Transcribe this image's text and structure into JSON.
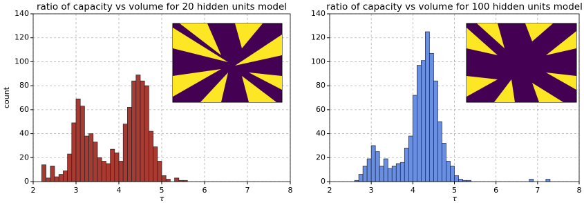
{
  "chart_data": [
    {
      "type": "histogram",
      "title": "ratio of capacity vs volume for 20 hidden units model",
      "xlabel": "τ",
      "ylabel": "count",
      "bins": [
        2.2,
        2.3,
        2.4,
        2.5,
        2.6,
        2.7,
        2.8,
        2.9,
        3.0,
        3.1,
        3.2,
        3.3,
        3.4,
        3.5,
        3.6,
        3.7,
        3.8,
        3.9,
        4.0,
        4.1,
        4.2,
        4.3,
        4.4,
        4.5,
        4.6,
        4.7,
        4.8,
        4.9,
        5.0,
        5.1,
        5.2,
        5.3,
        5.4,
        5.5,
        5.6
      ],
      "values": [
        14,
        3,
        13,
        4,
        6,
        9,
        23,
        49,
        69,
        63,
        38,
        40,
        33,
        20,
        17,
        15,
        27,
        24,
        17,
        48,
        62,
        84,
        89,
        84,
        80,
        42,
        29,
        17,
        5,
        2,
        0,
        3,
        1,
        1
      ],
      "color": "#a83a32",
      "xlim": [
        2,
        8
      ],
      "ylim": [
        0,
        140
      ],
      "xticks": [
        2,
        3,
        4,
        5,
        6,
        7,
        8
      ],
      "yticks": [
        0,
        20,
        40,
        60,
        80,
        100,
        120,
        140
      ],
      "grid": true
    },
    {
      "type": "histogram",
      "title": "ratio of capacity vs volume for 100 hidden units model",
      "xlabel": "τ",
      "bins": [
        2.6,
        2.7,
        2.8,
        2.9,
        3.0,
        3.1,
        3.2,
        3.3,
        3.4,
        3.5,
        3.6,
        3.7,
        3.8,
        3.9,
        4.0,
        4.1,
        4.2,
        4.3,
        4.4,
        4.5,
        4.6,
        4.7,
        4.8,
        4.9,
        5.0,
        5.1,
        5.2,
        5.3,
        5.4,
        5.5,
        5.6,
        5.7,
        5.8,
        5.9,
        6.0,
        6.1,
        6.2,
        6.3,
        6.4,
        6.5,
        6.6,
        6.7,
        6.8,
        6.9,
        7.0,
        7.1,
        7.2,
        7.3
      ],
      "values": [
        1,
        6,
        13,
        19,
        30,
        25,
        13,
        19,
        11,
        13,
        15,
        16,
        28,
        38,
        72,
        97,
        101,
        125,
        107,
        84,
        50,
        32,
        17,
        13,
        5,
        2,
        1,
        1,
        0,
        0,
        0,
        0,
        0,
        0,
        0,
        0,
        0,
        0,
        0,
        0,
        0,
        0,
        2,
        0,
        0,
        0,
        2
      ],
      "color": "#6a8ee0",
      "xlim": [
        2,
        8
      ],
      "ylim": [
        0,
        140
      ],
      "xticks": [
        2,
        3,
        4,
        5,
        6,
        7,
        8
      ],
      "yticks": [
        0,
        20,
        40,
        60,
        80,
        100,
        120,
        140
      ],
      "grid": true
    }
  ]
}
